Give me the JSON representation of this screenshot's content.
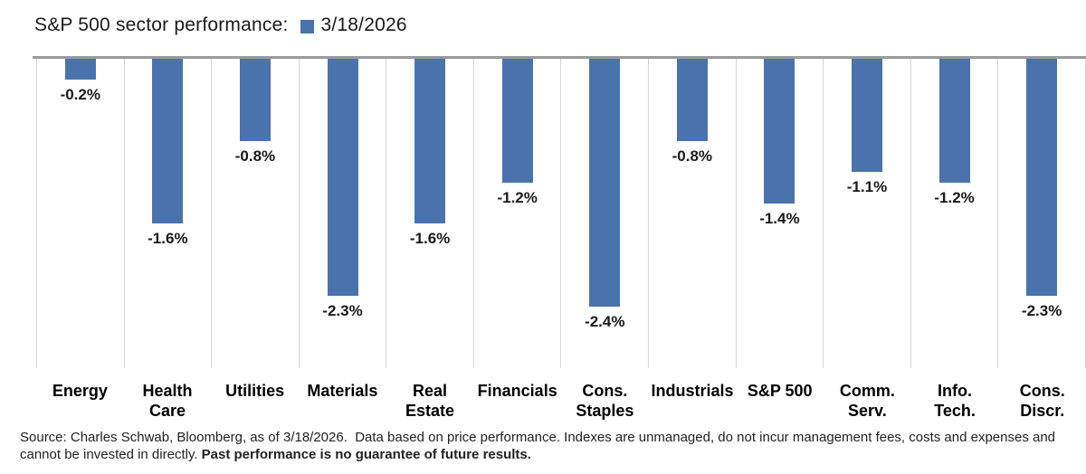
{
  "header": {
    "title": "S&P 500 sector performance:",
    "legend_label": "3/18/2026"
  },
  "colors": {
    "bar": "#4a73ad",
    "axis_line": "#9a9a9a",
    "gridline": "#d6d6d6"
  },
  "chart_data": {
    "type": "bar",
    "title": "S&P 500 sector performance:",
    "legend": {
      "position": "top",
      "entries": [
        "3/18/2026"
      ]
    },
    "categories": [
      "Energy",
      "Health\nCare",
      "Utilities",
      "Materials",
      "Real\nEstate",
      "Financials",
      "Cons.\nStaples",
      "Industrials",
      "S&P 500",
      "Comm.\nServ.",
      "Info.\nTech.",
      "Cons.\nDiscr."
    ],
    "series": [
      {
        "name": "3/18/2026",
        "values": [
          -0.2,
          -1.6,
          -0.8,
          -2.3,
          -1.6,
          -1.2,
          -2.4,
          -0.8,
          -1.4,
          -1.1,
          -1.2,
          -2.3
        ]
      }
    ],
    "value_labels": [
      "-0.2%",
      "-1.6%",
      "-0.8%",
      "-2.3%",
      "-1.6%",
      "-1.2%",
      "-2.4%",
      "-0.8%",
      "-1.4%",
      "-1.1%",
      "-1.2%",
      "-2.3%"
    ],
    "ylabel": "",
    "xlabel": "",
    "ylim": [
      -3.0,
      0
    ],
    "grid": "vertical-column-separators",
    "bar_color": "#4a73ad"
  },
  "footer": {
    "line1": "Source: Charles Schwab, Bloomberg, as of 3/18/2026.  Data based on price performance. Indexes are unmanaged, do not incur management fees, costs and expenses and",
    "line2_regular": "cannot be invested in directly. ",
    "line2_bold": "Past performance is no guarantee of future results."
  }
}
